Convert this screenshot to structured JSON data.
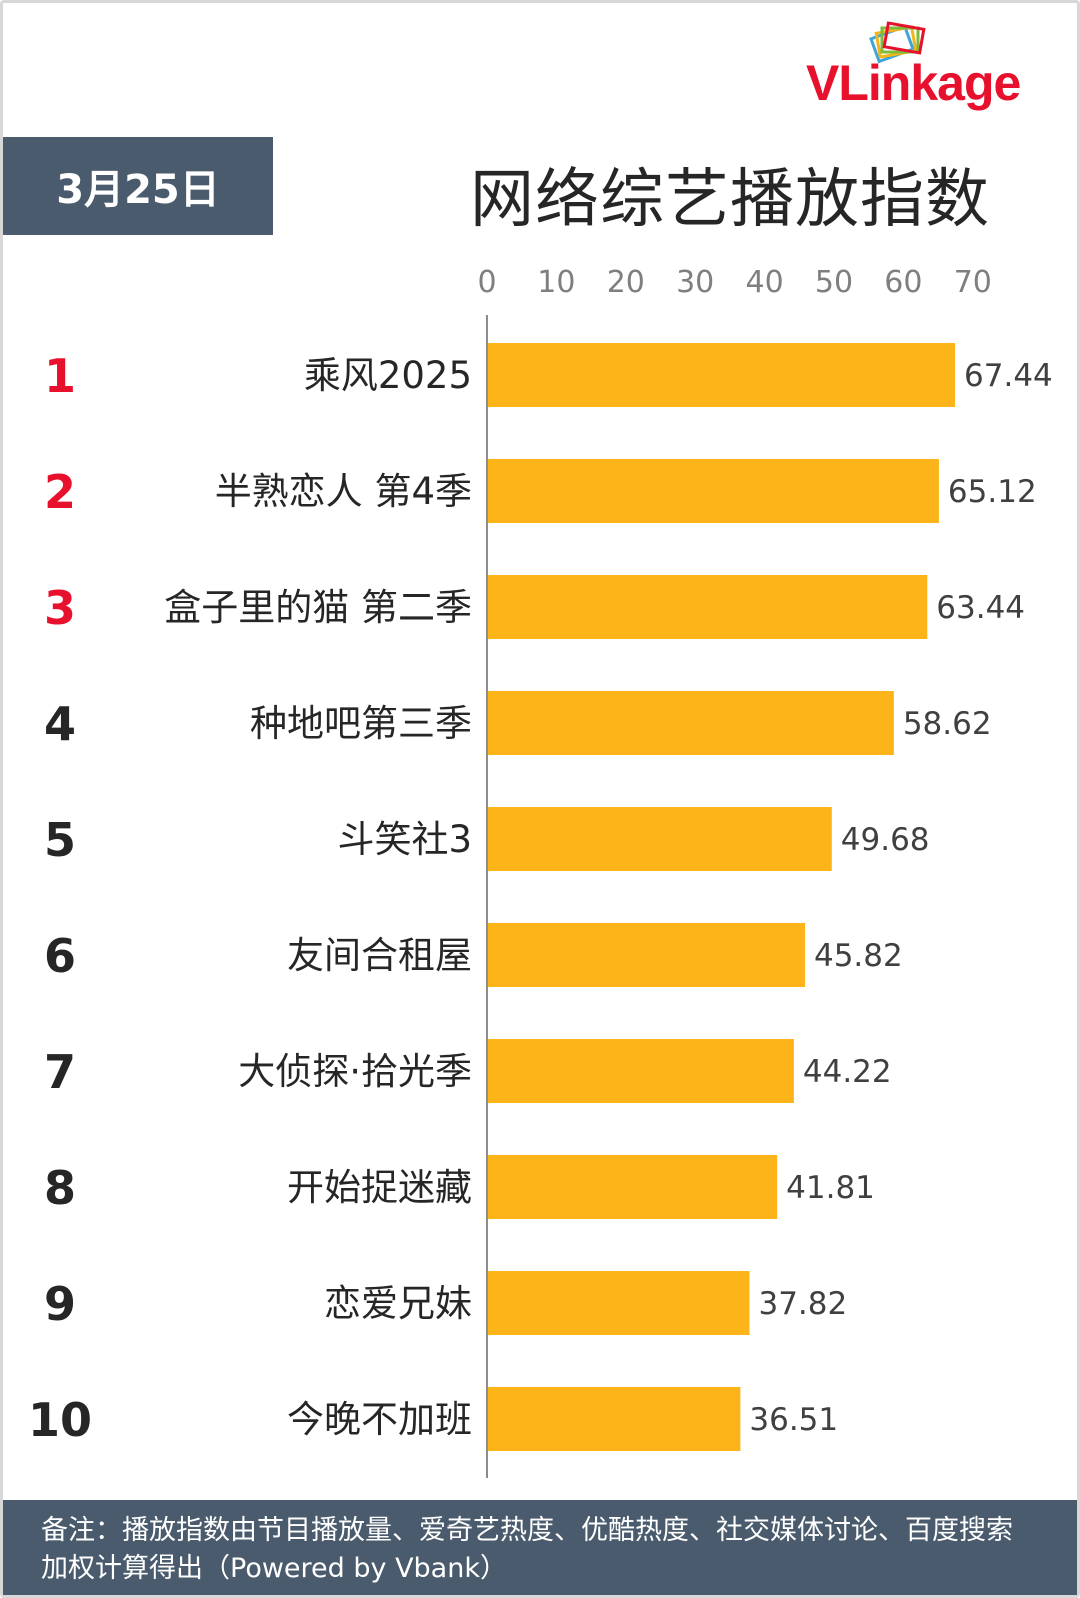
{
  "header": {
    "date": "3月25日",
    "brand": {
      "part1": "VLink",
      "part2": "age"
    }
  },
  "chart_data": {
    "type": "bar",
    "orientation": "horizontal",
    "title": "网络综艺播放指数",
    "ranks": [
      "1",
      "2",
      "3",
      "4",
      "5",
      "6",
      "7",
      "8",
      "9",
      "10"
    ],
    "categories": [
      "乘风2025",
      "半熟恋人 第4季",
      "盒子里的猫 第二季",
      "种地吧第三季",
      "斗笑社3",
      "友间合租屋",
      "大侦探·拾光季",
      "开始捉迷藏",
      "恋爱兄妹",
      "今晚不加班"
    ],
    "values": [
      67.44,
      65.12,
      63.44,
      58.62,
      49.68,
      45.82,
      44.22,
      41.81,
      37.82,
      36.51
    ],
    "value_labels": [
      "67.44",
      "65.12",
      "63.44",
      "58.62",
      "49.68",
      "45.82",
      "44.22",
      "41.81",
      "37.82",
      "36.51"
    ],
    "xticks": [
      "0",
      "10",
      "20",
      "30",
      "40",
      "50",
      "60",
      "70"
    ],
    "xlim": [
      0,
      70
    ],
    "grid": false,
    "colors": {
      "bar": "#fcb419",
      "top_rank": "#e8112d",
      "rank": "#262626",
      "panel": "#4a5b6d"
    }
  },
  "footer": {
    "note": "备注：播放指数由节目播放量、爱奇艺热度、优酷热度、社交媒体讨论、百度搜索加权计算得出（Powered by Vbank）"
  }
}
